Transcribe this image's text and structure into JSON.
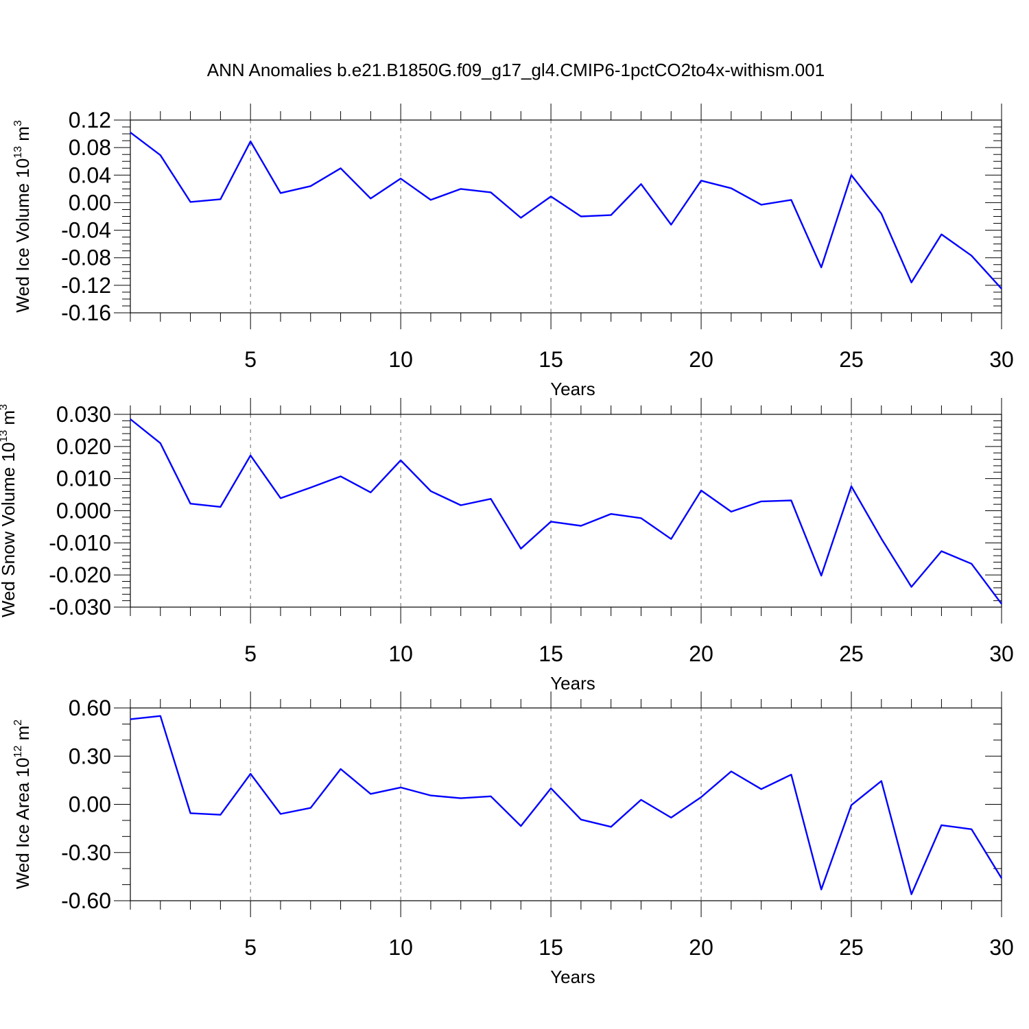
{
  "figure": {
    "title": "ANN Anomalies b.e21.B1850G.f09_g17_gl4.CMIP6-1pctCO2to4x-withism.001",
    "line_color": "#0000ff"
  },
  "chart_data": [
    {
      "type": "line",
      "xlabel": "Years",
      "ylabel_main": "Wed Ice Volume 10",
      "ylabel_exp": "13",
      "ylabel_unit": " m",
      "ylabel_unit_exp": "3",
      "xlim": [
        1,
        30
      ],
      "ylim": [
        -0.16,
        0.12
      ],
      "xticks": [
        5,
        10,
        15,
        20,
        25,
        30
      ],
      "yticks": [
        0.12,
        0.08,
        0.04,
        0.0,
        -0.04,
        -0.08,
        -0.12,
        -0.16
      ],
      "ytick_labels": [
        "0.12",
        "0.08",
        "0.04",
        "0.00",
        "-0.04",
        "-0.08",
        "-0.12",
        "-0.16"
      ],
      "ytick_minor_step": 0.01,
      "grid_x": [
        5,
        10,
        15,
        20,
        25
      ],
      "series": [
        {
          "x": [
            1,
            2,
            3,
            4,
            5,
            6,
            7,
            8,
            9,
            10,
            11,
            12,
            13,
            14,
            15,
            16,
            17,
            18,
            19,
            20,
            21,
            22,
            23,
            24,
            25,
            26,
            27,
            28,
            29,
            30
          ],
          "values": [
            0.102,
            0.069,
            0.001,
            0.005,
            0.089,
            0.014,
            0.024,
            0.05,
            0.006,
            0.035,
            0.004,
            0.02,
            0.015,
            -0.022,
            0.009,
            -0.02,
            -0.018,
            0.027,
            -0.032,
            0.032,
            0.021,
            -0.003,
            0.004,
            -0.094,
            0.04,
            -0.016,
            -0.116,
            -0.046,
            -0.077,
            -0.125
          ]
        }
      ]
    },
    {
      "type": "line",
      "xlabel": "Years",
      "ylabel_main": "Wed Snow Volume 10",
      "ylabel_exp": "13",
      "ylabel_unit": " m",
      "ylabel_unit_exp": "3",
      "xlim": [
        1,
        30
      ],
      "ylim": [
        -0.03,
        0.03
      ],
      "xticks": [
        5,
        10,
        15,
        20,
        25,
        30
      ],
      "yticks": [
        0.03,
        0.02,
        0.01,
        0.0,
        -0.01,
        -0.02,
        -0.03
      ],
      "ytick_labels": [
        "0.030",
        "0.020",
        "0.010",
        "0.000",
        "-0.010",
        "-0.020",
        "-0.030"
      ],
      "ytick_minor_step": 0.002,
      "grid_x": [
        5,
        10,
        15,
        20,
        25
      ],
      "series": [
        {
          "x": [
            1,
            2,
            3,
            4,
            5,
            6,
            7,
            8,
            9,
            10,
            11,
            12,
            13,
            14,
            15,
            16,
            17,
            18,
            19,
            20,
            21,
            22,
            23,
            24,
            25,
            26,
            27,
            28,
            29,
            30
          ],
          "values": [
            0.0285,
            0.021,
            0.0022,
            0.0012,
            0.0172,
            0.0039,
            0.0072,
            0.0107,
            0.0057,
            0.0157,
            0.0061,
            0.0017,
            0.0037,
            -0.0118,
            -0.0034,
            -0.0047,
            -0.001,
            -0.0023,
            -0.0088,
            0.0063,
            -0.0003,
            0.0029,
            0.0032,
            -0.0202,
            0.0076,
            -0.0087,
            -0.0237,
            -0.0126,
            -0.0165,
            -0.029
          ]
        }
      ]
    },
    {
      "type": "line",
      "xlabel": "Years",
      "ylabel_main": "Wed Ice Area 10",
      "ylabel_exp": "12",
      "ylabel_unit": " m",
      "ylabel_unit_exp": "2",
      "xlim": [
        1,
        30
      ],
      "ylim": [
        -0.6,
        0.6
      ],
      "xticks": [
        5,
        10,
        15,
        20,
        25,
        30
      ],
      "yticks": [
        0.6,
        0.3,
        0.0,
        -0.3,
        -0.6
      ],
      "ytick_labels": [
        "0.60",
        "0.30",
        "0.00",
        "-0.30",
        "-0.60"
      ],
      "ytick_minor_step": 0.1,
      "grid_x": [
        5,
        10,
        15,
        20,
        25
      ],
      "series": [
        {
          "x": [
            1,
            2,
            3,
            4,
            5,
            6,
            7,
            8,
            9,
            10,
            11,
            12,
            13,
            14,
            15,
            16,
            17,
            18,
            19,
            20,
            21,
            22,
            23,
            24,
            25,
            26,
            27,
            28,
            29,
            30
          ],
          "values": [
            0.53,
            0.55,
            -0.055,
            -0.065,
            0.19,
            -0.06,
            -0.022,
            0.22,
            0.065,
            0.105,
            0.055,
            0.038,
            0.05,
            -0.135,
            0.1,
            -0.095,
            -0.14,
            0.028,
            -0.083,
            0.045,
            0.205,
            0.095,
            0.185,
            -0.53,
            -0.005,
            0.145,
            -0.56,
            -0.13,
            -0.155,
            -0.46
          ]
        }
      ]
    }
  ]
}
